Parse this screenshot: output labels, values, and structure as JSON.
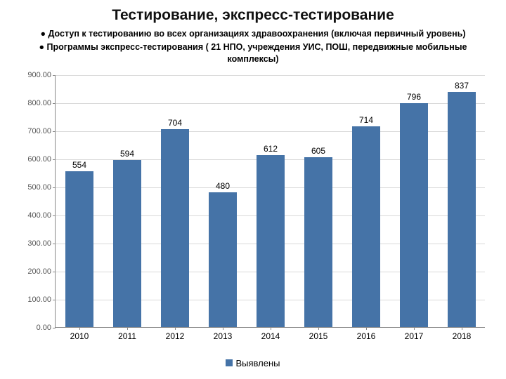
{
  "title": "Тестирование, экспресс-тестирование",
  "bullets": [
    "Доступ к тестированию во всех организациях здравоохранения (включая первичный уровень)",
    "Программы экспресс-тестирования ( 21 НПО, учреждения УИС, ПОШ, передвижные мобильные комплексы)"
  ],
  "chart": {
    "type": "bar",
    "categories": [
      "2010",
      "2011",
      "2012",
      "2013",
      "2014",
      "2015",
      "2016",
      "2017",
      "2018"
    ],
    "values": [
      554,
      594,
      704,
      480,
      612,
      605,
      714,
      796,
      837
    ],
    "value_labels": [
      "554",
      "594",
      "704",
      "480",
      "612",
      "605",
      "714",
      "796",
      "837"
    ],
    "bar_color": "#4573a7",
    "ylim": [
      0,
      900
    ],
    "ytick_step": 100,
    "ytick_format": "fixed2",
    "bar_width_ratio": 0.58,
    "grid_color": "#d9d9d9",
    "axis_color": "#888888",
    "background_color": "#ffffff",
    "label_fontsize": 12,
    "tick_fontsize": 11,
    "legend": {
      "label": "Выявлены",
      "swatch_color": "#4573a7",
      "position": "bottom"
    }
  }
}
